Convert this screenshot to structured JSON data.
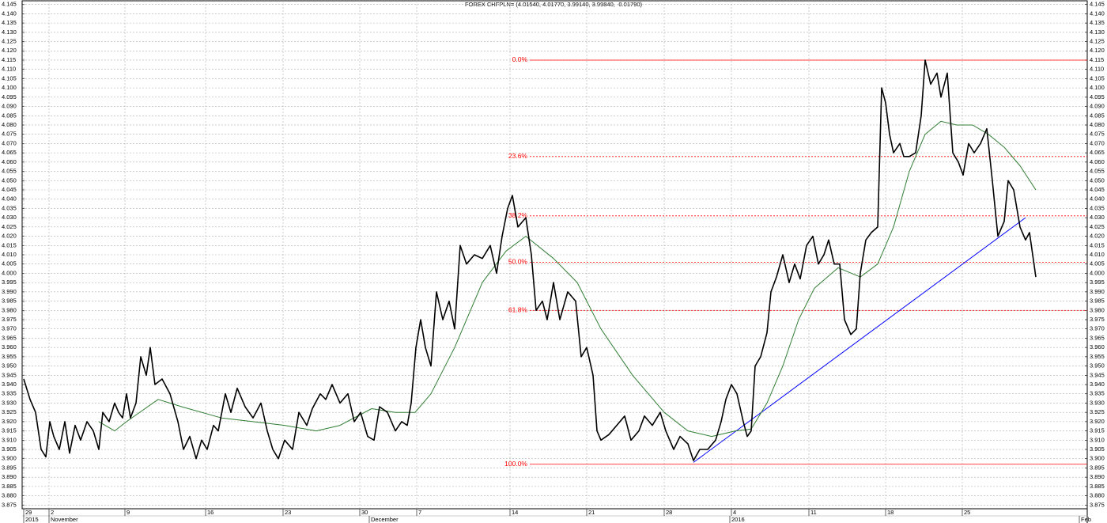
{
  "chart_data": {
    "type": "line",
    "title": "FOREX CHFPLN= (4.01540, 4.01770, 3.99140, 3.99840, -0.01790)",
    "xlim": [
      -0.2,
      134.5
    ],
    "ylim": [
      3.873,
      4.147
    ],
    "grid": true,
    "xticks": [
      {
        "value": 0,
        "label": "29"
      },
      {
        "value": 3.2,
        "label": "2"
      },
      {
        "value": 12.8,
        "label": "9"
      },
      {
        "value": 23,
        "label": "16"
      },
      {
        "value": 32.8,
        "label": "23"
      },
      {
        "value": 42.5,
        "label": "30"
      },
      {
        "value": 49.7,
        "label": "7"
      },
      {
        "value": 61.5,
        "label": "14"
      },
      {
        "value": 71.2,
        "label": "21"
      },
      {
        "value": 81,
        "label": "28"
      },
      {
        "value": 89.5,
        "label": "4"
      },
      {
        "value": 99.3,
        "label": "11"
      },
      {
        "value": 109,
        "label": "18"
      },
      {
        "value": 118.7,
        "label": "25"
      }
    ],
    "x_period_labels": [
      {
        "value": 0,
        "label": "2015"
      },
      {
        "value": 3.2,
        "label": "November"
      },
      {
        "value": 43.7,
        "label": "December"
      },
      {
        "value": 89.3,
        "label": "2016"
      },
      {
        "value": 133.5,
        "label": "Feb"
      }
    ],
    "yticks": [
      3.875,
      {
        "value": 3.88,
        "label": "3.880"
      },
      3.885,
      {
        "value": 3.89,
        "label": "3.890"
      },
      3.895,
      {
        "value": 3.9,
        "label": "3.900"
      },
      3.905,
      {
        "value": 3.91,
        "label": "3.910"
      },
      3.915,
      {
        "value": 3.92,
        "label": "3.920"
      },
      3.925,
      {
        "value": 3.93,
        "label": "3.930"
      },
      3.935,
      {
        "value": 3.94,
        "label": "3.940"
      },
      3.945,
      {
        "value": 3.95,
        "label": "3.950"
      },
      3.955,
      {
        "value": 3.96,
        "label": "3.960"
      },
      3.965,
      {
        "value": 3.97,
        "label": "3.970"
      },
      3.975,
      {
        "value": 3.98,
        "label": "3.980"
      },
      3.985,
      {
        "value": 3.99,
        "label": "3.990"
      },
      3.995,
      {
        "value": 4,
        "label": "4.000"
      },
      4.005,
      {
        "value": 4.01,
        "label": "4.010"
      },
      4.015,
      {
        "value": 4.02,
        "label": "4.020"
      },
      4.025,
      {
        "value": 4.03,
        "label": "4.030"
      },
      4.035,
      {
        "value": 4.04,
        "label": "4.040"
      },
      4.045,
      {
        "value": 4.05,
        "label": "4.050"
      },
      4.055,
      {
        "value": 4.06,
        "label": "4.060"
      },
      4.065,
      {
        "value": 4.07,
        "label": "4.070"
      },
      4.075,
      {
        "value": 4.08,
        "label": "4.080"
      },
      4.085,
      {
        "value": 4.09,
        "label": "4.090"
      },
      4.095,
      {
        "value": 4.1,
        "label": "4.100"
      },
      4.105,
      {
        "value": 4.11,
        "label": "4.110"
      },
      4.115,
      {
        "value": 4.12,
        "label": "4.120"
      },
      4.125,
      {
        "value": 4.13,
        "label": "4.130"
      },
      4.135,
      {
        "value": 4.14,
        "label": "4.140"
      },
      4.145
    ],
    "series": [
      {
        "color": "#000000",
        "width": 1.6,
        "x": [
          0,
          0.8,
          1.5,
          2.2,
          2.8,
          3.3,
          3.8,
          4.5,
          5.2,
          5.8,
          6.5,
          7.2,
          8,
          8.8,
          9.5,
          10,
          10.8,
          11.5,
          12,
          12.5,
          13,
          13.5,
          14.2,
          14.8,
          15.5,
          16,
          16.6,
          17.5,
          18.5,
          19.5,
          20.2,
          21,
          21.8,
          22.5,
          23.2,
          24,
          24.6,
          25.5,
          26.2,
          27,
          28,
          29,
          30,
          30.8,
          31.5,
          32.2,
          33,
          34,
          34.8,
          35.8,
          36.5,
          37.5,
          38.2,
          39,
          40,
          41,
          41.8,
          42.6,
          43.5,
          44.3,
          45,
          46,
          47,
          47.8,
          48.5,
          49,
          49.6,
          50.2,
          50.8,
          51.5,
          52.2,
          53,
          53.8,
          54.5,
          55.2,
          56,
          57,
          58,
          59,
          59.8,
          60.5,
          61.2,
          61.8,
          62.5,
          63.5,
          64.2,
          64.8,
          65.6,
          66.2,
          67,
          67.8,
          68.8,
          69.8,
          70.5,
          71.2,
          72,
          72.5,
          73,
          74,
          75,
          76,
          76.8,
          77.8,
          78.5,
          79.5,
          80.5,
          81.2,
          82.2,
          83,
          84,
          84.7,
          85.5,
          86.5,
          87.5,
          88.2,
          88.8,
          89.5,
          90.2,
          91,
          91.5,
          92,
          92.5,
          93.2,
          94,
          94.5,
          95.2,
          96,
          96.8,
          97.5,
          98.2,
          99,
          99.8,
          100.5,
          101.2,
          101.8,
          102.5,
          103.2,
          103.8,
          104.6,
          105.3,
          105.8,
          106.5,
          107.2,
          108,
          108.5,
          109,
          109.5,
          110,
          110.8,
          111.3,
          112,
          112.8,
          113.5,
          114,
          114.7,
          115.5,
          116,
          116.8,
          117.5,
          118.2,
          118.8,
          119.5,
          120.2,
          121,
          121.8,
          122.5,
          123.2,
          124,
          124.5,
          125.2,
          126,
          126.7,
          127.2,
          127.6,
          128
        ],
        "values": [
          3.943,
          3.932,
          3.925,
          3.905,
          3.901,
          3.92,
          3.912,
          3.905,
          3.92,
          3.903,
          3.918,
          3.91,
          3.92,
          3.915,
          3.905,
          3.925,
          3.92,
          3.93,
          3.925,
          3.922,
          3.935,
          3.922,
          3.93,
          3.955,
          3.945,
          3.96,
          3.94,
          3.943,
          3.935,
          3.92,
          3.905,
          3.912,
          3.9,
          3.91,
          3.905,
          3.918,
          3.915,
          3.935,
          3.925,
          3.938,
          3.928,
          3.922,
          3.93,
          3.915,
          3.905,
          3.9,
          3.91,
          3.905,
          3.925,
          3.918,
          3.927,
          3.935,
          3.932,
          3.94,
          3.93,
          3.935,
          3.92,
          3.925,
          3.912,
          3.91,
          3.928,
          3.925,
          3.915,
          3.92,
          3.918,
          3.93,
          3.96,
          3.975,
          3.96,
          3.95,
          3.99,
          3.975,
          3.985,
          3.97,
          4.015,
          4.005,
          4.01,
          4.008,
          4.015,
          4,
          4.02,
          4.035,
          4.042,
          4.025,
          4.03,
          4.01,
          3.98,
          3.985,
          3.975,
          3.995,
          3.975,
          3.99,
          3.985,
          3.955,
          3.96,
          3.945,
          3.915,
          3.91,
          3.913,
          3.918,
          3.923,
          3.91,
          3.915,
          3.923,
          3.918,
          3.925,
          3.915,
          3.905,
          3.912,
          3.908,
          3.899,
          3.905,
          3.905,
          3.91,
          3.92,
          3.932,
          3.94,
          3.935,
          3.92,
          3.912,
          3.915,
          3.95,
          3.955,
          3.968,
          3.99,
          3.998,
          4.01,
          3.995,
          4.005,
          3.997,
          4.015,
          4.02,
          4.005,
          4.01,
          4.018,
          4.005,
          4.005,
          3.975,
          3.967,
          3.97,
          4,
          4.018,
          4.022,
          4.025,
          4.1,
          4.092,
          4.075,
          4.065,
          4.07,
          4.063,
          4.063,
          4.065,
          4.085,
          4.115,
          4.102,
          4.108,
          4.095,
          4.108,
          4.065,
          4.06,
          4.053,
          4.07,
          4.065,
          4.07,
          4.078,
          4.05,
          4.02,
          4.028,
          4.05,
          4.045,
          4.025,
          4.018,
          4.022,
          4.01,
          3.998
        ]
      },
      {
        "color": "#2f7d32",
        "width": 1,
        "x": [
          9.5,
          11.5,
          13,
          17,
          20,
          25,
          29,
          33,
          37,
          40,
          44,
          47,
          49.5,
          51.5,
          54.5,
          58,
          61,
          63.5,
          67,
          70,
          73,
          77,
          81,
          84,
          87,
          90,
          92,
          94,
          96,
          98,
          100,
          103,
          105.8,
          108,
          110,
          112,
          114,
          116,
          118,
          120,
          122,
          124,
          126,
          128
        ],
        "values": [
          3.92,
          3.915,
          3.92,
          3.932,
          3.928,
          3.922,
          3.92,
          3.918,
          3.915,
          3.918,
          3.927,
          3.925,
          3.925,
          3.935,
          3.96,
          3.995,
          4.012,
          4.02,
          4.008,
          3.995,
          3.97,
          3.945,
          3.925,
          3.915,
          3.912,
          3.915,
          3.916,
          3.93,
          3.95,
          3.975,
          3.992,
          4.003,
          3.998,
          4.005,
          4.025,
          4.055,
          4.075,
          4.082,
          4.08,
          4.08,
          4.075,
          4.068,
          4.058,
          4.045
        ]
      },
      {
        "color": "#0000ff",
        "width": 1,
        "x": [
          84.7,
          126.7
        ],
        "values": [
          3.898,
          4.03
        ]
      }
    ],
    "fibonacci_color": "#ff0000",
    "fibonacci_x_start": 64,
    "fibonacci": [
      {
        "label": "0.0%",
        "value": 4.115,
        "style": "solid"
      },
      {
        "label": "23.6%",
        "value": 4.063,
        "style": "dashed"
      },
      {
        "label": "38.2%",
        "value": 4.031,
        "style": "dashed"
      },
      {
        "label": "50.0%",
        "value": 4.006,
        "style": "dashed"
      },
      {
        "label": "61.8%",
        "value": 3.98,
        "style": "dashed"
      },
      {
        "label": "100.0%",
        "value": 3.897,
        "style": "solid"
      }
    ]
  }
}
